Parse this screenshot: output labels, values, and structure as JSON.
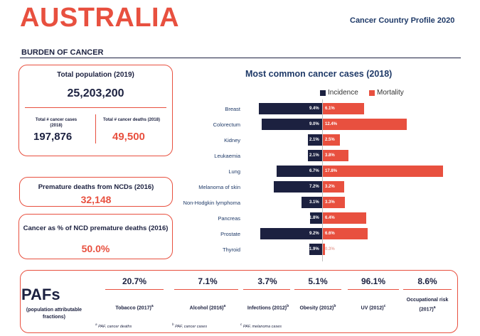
{
  "header": {
    "country": "AUSTRALIA",
    "profile": "Cancer Country Profile 2020",
    "section": "BURDEN OF CANCER"
  },
  "population": {
    "label": "Total population (2019)",
    "value": "25,203,200",
    "cases_label": "Total # cancer cases (2018)",
    "cases_value": "197,876",
    "deaths_label": "Total # cancer deaths (2018)",
    "deaths_value": "49,500"
  },
  "premature": {
    "label": "Premature deaths from NCDs (2016)",
    "value": "32,148"
  },
  "ncd_pct": {
    "label": "Cancer as % of NCD premature deaths (2016)",
    "value": "50.0%"
  },
  "colors": {
    "incidence": "#1c2140",
    "mortality": "#e8503f",
    "accent": "#e8503f"
  },
  "chart_data": {
    "type": "bar",
    "title": "Most common cancer cases (2018)",
    "legend": "top-right",
    "categories": [
      "Breast",
      "Colorectum",
      "Kidney",
      "Leukaemia",
      "Lung",
      "Melanoma of skin",
      "Non-Hodgkin lymphoma",
      "Pancreas",
      "Prostate",
      "Thyroid"
    ],
    "series": [
      {
        "name": "Incidence",
        "values": [
          9.4,
          9.0,
          2.1,
          2.1,
          6.7,
          7.2,
          3.1,
          1.8,
          9.2,
          1.9
        ],
        "labels": [
          "9.4%",
          "9.0%",
          "2.1%",
          "2.1%",
          "6.7%",
          "7.2%",
          "3.1%",
          "1.8%",
          "9.2%",
          "1.9%"
        ]
      },
      {
        "name": "Mortality",
        "values": [
          6.1,
          12.4,
          2.5,
          3.8,
          17.8,
          3.2,
          3.3,
          6.4,
          6.6,
          0.3
        ],
        "labels": [
          "6.1%",
          "12.4%",
          "2.5%",
          "3.8%",
          "17.8%",
          "3.2%",
          "3.3%",
          "6.4%",
          "6.6%",
          "0.3%"
        ]
      }
    ]
  },
  "pafs": {
    "title": "PAFs",
    "subtitle": "(population attributable fractions)",
    "items": [
      {
        "value": "20.7%",
        "name": "Tobacco (2017)",
        "sup": "a"
      },
      {
        "value": "7.1%",
        "name": "Alcohol (2016)",
        "sup": "a"
      },
      {
        "value": "3.7%",
        "name": "Infections (2012)",
        "sup": "b"
      },
      {
        "value": "5.1%",
        "name": "Obesity (2012)",
        "sup": "b"
      },
      {
        "value": "96.1%",
        "name": "UV (2012)",
        "sup": "c"
      },
      {
        "value": "8.6%",
        "name": "Occupational risk (2017)",
        "sup": "a"
      }
    ],
    "notes": [
      {
        "sup": "a",
        "text": "PAF, cancer deaths"
      },
      {
        "sup": "b",
        "text": "PAF, cancer cases"
      },
      {
        "sup": "c",
        "text": "PAF, melanoma cases"
      }
    ]
  }
}
